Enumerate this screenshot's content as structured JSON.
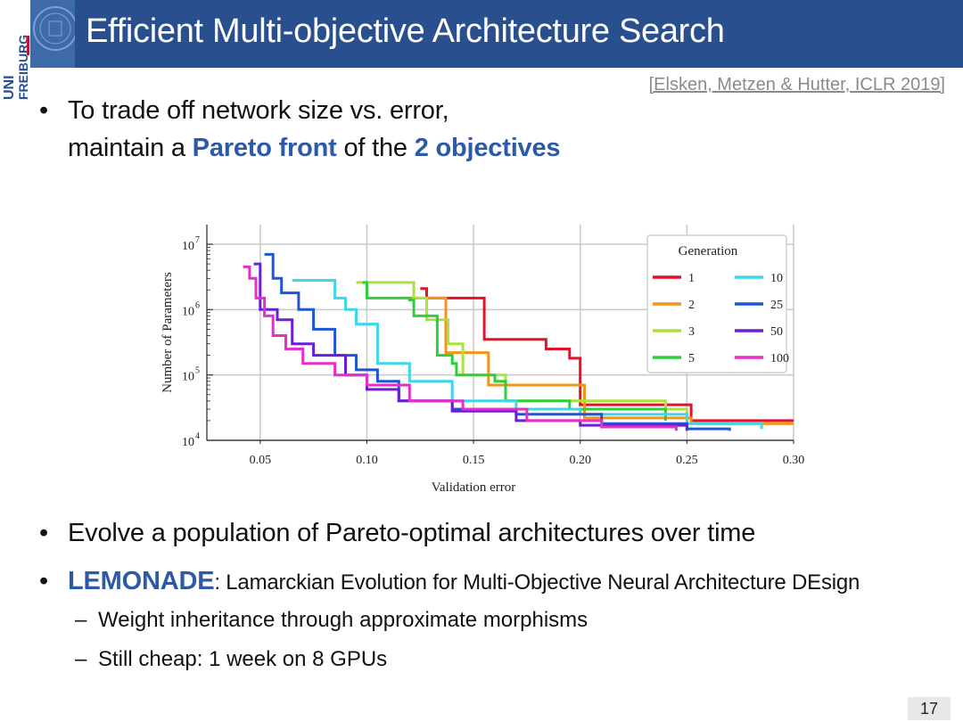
{
  "header": {
    "title": "Efficient Multi-objective Architecture Search",
    "logo_text_1": "UNI",
    "logo_text_2": "FREIBURG"
  },
  "citation": "[Elsken, Metzen & Hutter, ICLR 2019]",
  "bullets": {
    "b1_line1": "To trade off network size vs. error,",
    "b1_line2_a": "maintain a ",
    "b1_line2_hl1": "Pareto front",
    "b1_line2_b": " of the ",
    "b1_line2_hl2": "2 objectives",
    "b2": "Evolve a population of Pareto-optimal architectures over time",
    "b3_hl": "LEMONADE",
    "b3_rest": ": Lamarckian Evolution for Multi-Objective Neural Architecture DEsign",
    "sub1": "Weight inheritance through approximate morphisms",
    "sub2": "Still cheap: 1 week on 8 GPUs",
    "bullet_char": "•",
    "dash_char": "–"
  },
  "page_number": "17",
  "chart_data": {
    "type": "line",
    "xlabel": "Validation error",
    "ylabel": "Number of Parameters",
    "xlim": [
      0.025,
      0.3
    ],
    "ylim_log10": [
      4,
      7.3
    ],
    "yscale": "log",
    "x_ticks": [
      0.05,
      0.1,
      0.15,
      0.2,
      0.25,
      0.3
    ],
    "x_tick_labels": [
      "0.05",
      "0.10",
      "0.15",
      "0.20",
      "0.25",
      "0.30"
    ],
    "y_ticks_log10": [
      4,
      5,
      6,
      7
    ],
    "y_tick_labels": [
      "10",
      "10",
      "10",
      "10"
    ],
    "y_tick_exponents": [
      "4",
      "5",
      "6",
      "7"
    ],
    "grid": true,
    "legend": {
      "title": "Generation",
      "placement": "top-right"
    },
    "series": [
      {
        "name": "1",
        "color": "#e3122b",
        "points": [
          [
            0.125,
            2100000
          ],
          [
            0.128,
            1500000
          ],
          [
            0.152,
            1500000
          ],
          [
            0.155,
            350000
          ],
          [
            0.18,
            350000
          ],
          [
            0.184,
            250000
          ],
          [
            0.19,
            250000
          ],
          [
            0.195,
            180000
          ],
          [
            0.2,
            35000
          ],
          [
            0.25,
            35000
          ],
          [
            0.252,
            20000
          ],
          [
            0.3,
            20000
          ]
        ]
      },
      {
        "name": "2",
        "color": "#f39318",
        "points": [
          [
            0.12,
            1500000
          ],
          [
            0.132,
            1500000
          ],
          [
            0.137,
            220000
          ],
          [
            0.155,
            220000
          ],
          [
            0.157,
            70000
          ],
          [
            0.2,
            70000
          ],
          [
            0.202,
            22000
          ],
          [
            0.25,
            22000
          ],
          [
            0.252,
            18000
          ],
          [
            0.3,
            18000
          ]
        ]
      },
      {
        "name": "3",
        "color": "#a8e23a",
        "points": [
          [
            0.095,
            2600000
          ],
          [
            0.12,
            2600000
          ],
          [
            0.122,
            1500000
          ],
          [
            0.126,
            1500000
          ],
          [
            0.128,
            700000
          ],
          [
            0.135,
            700000
          ],
          [
            0.138,
            300000
          ],
          [
            0.142,
            300000
          ],
          [
            0.145,
            100000
          ],
          [
            0.163,
            100000
          ],
          [
            0.165,
            40000
          ],
          [
            0.2,
            40000
          ],
          [
            0.24,
            30000
          ],
          [
            0.25,
            20000
          ]
        ]
      },
      {
        "name": "5",
        "color": "#2fcf3c",
        "points": [
          [
            0.098,
            2600000
          ],
          [
            0.1,
            1500000
          ],
          [
            0.12,
            1400000
          ],
          [
            0.122,
            800000
          ],
          [
            0.13,
            800000
          ],
          [
            0.133,
            200000
          ],
          [
            0.14,
            150000
          ],
          [
            0.142,
            100000
          ],
          [
            0.16,
            80000
          ],
          [
            0.165,
            40000
          ],
          [
            0.195,
            30000
          ],
          [
            0.24,
            20000
          ]
        ]
      },
      {
        "name": "10",
        "color": "#3fd6ea",
        "points": [
          [
            0.065,
            2800000
          ],
          [
            0.08,
            2800000
          ],
          [
            0.085,
            1500000
          ],
          [
            0.09,
            1000000
          ],
          [
            0.095,
            600000
          ],
          [
            0.1,
            600000
          ],
          [
            0.105,
            150000
          ],
          [
            0.115,
            150000
          ],
          [
            0.12,
            80000
          ],
          [
            0.135,
            80000
          ],
          [
            0.14,
            40000
          ],
          [
            0.17,
            30000
          ],
          [
            0.2,
            25000
          ],
          [
            0.25,
            18000
          ],
          [
            0.285,
            15000
          ]
        ]
      },
      {
        "name": "25",
        "color": "#1e56d6",
        "points": [
          [
            0.052,
            7000000
          ],
          [
            0.056,
            3000000
          ],
          [
            0.06,
            1800000
          ],
          [
            0.068,
            1000000
          ],
          [
            0.075,
            500000
          ],
          [
            0.085,
            200000
          ],
          [
            0.095,
            120000
          ],
          [
            0.105,
            80000
          ],
          [
            0.115,
            40000
          ],
          [
            0.14,
            30000
          ],
          [
            0.17,
            25000
          ],
          [
            0.21,
            18000
          ],
          [
            0.25,
            15000
          ],
          [
            0.27,
            14000
          ]
        ]
      },
      {
        "name": "50",
        "color": "#6a1fd6",
        "points": [
          [
            0.047,
            5000000
          ],
          [
            0.05,
            1000000
          ],
          [
            0.058,
            700000
          ],
          [
            0.065,
            300000
          ],
          [
            0.075,
            200000
          ],
          [
            0.09,
            100000
          ],
          [
            0.1,
            60000
          ],
          [
            0.115,
            40000
          ],
          [
            0.14,
            28000
          ],
          [
            0.17,
            20000
          ],
          [
            0.2,
            17000
          ],
          [
            0.25,
            14000
          ]
        ]
      },
      {
        "name": "100",
        "color": "#e62fc9",
        "points": [
          [
            0.042,
            4500000
          ],
          [
            0.045,
            3000000
          ],
          [
            0.048,
            1500000
          ],
          [
            0.052,
            800000
          ],
          [
            0.056,
            400000
          ],
          [
            0.062,
            250000
          ],
          [
            0.07,
            150000
          ],
          [
            0.085,
            100000
          ],
          [
            0.1,
            70000
          ],
          [
            0.12,
            40000
          ],
          [
            0.145,
            30000
          ],
          [
            0.175,
            20000
          ],
          [
            0.21,
            16000
          ],
          [
            0.245,
            14000
          ]
        ]
      }
    ]
  }
}
